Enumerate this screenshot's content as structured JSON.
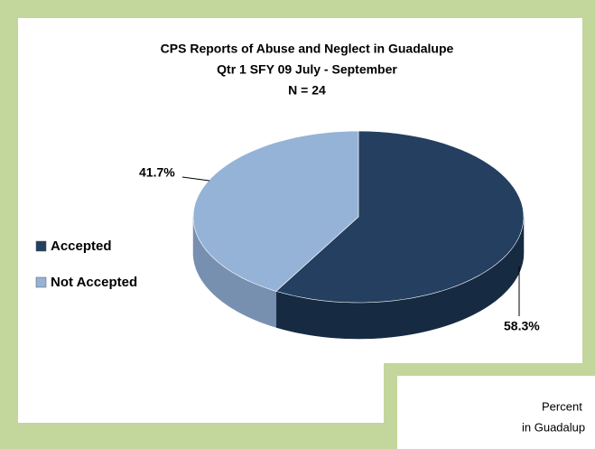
{
  "chart_data": {
    "type": "pie",
    "title": [
      "CPS Reports of Abuse and Neglect in Guadalupe",
      "Qtr 1 SFY 09 July - September",
      "N = 24"
    ],
    "categories": [
      "Accepted",
      "Not Accepted"
    ],
    "values": [
      58.3,
      41.7
    ],
    "value_labels": [
      "58.3%",
      "41.7%"
    ],
    "colors": [
      "#243f60",
      "#95b3d7"
    ],
    "side_colors": [
      "#162a42",
      "#7890b0"
    ],
    "legend": "left"
  },
  "overlapping_chart": {
    "title": [
      "Percent",
      "in Guadalup"
    ]
  }
}
